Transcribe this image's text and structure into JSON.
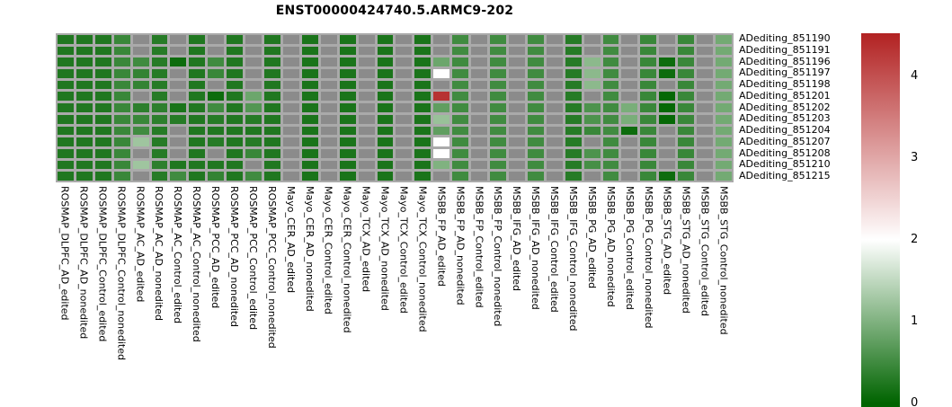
{
  "title": "ENST00000424740.5.ARMC9-202",
  "chart_data": {
    "type": "heatmap",
    "title": "ENST00000424740.5.ARMC9-202",
    "legend_position": "right",
    "rows": [
      "ADediting_851190",
      "ADediting_851191",
      "ADediting_851196",
      "ADediting_851197",
      "ADediting_851198",
      "ADediting_851201",
      "ADediting_851202",
      "ADediting_851203",
      "ADediting_851204",
      "ADediting_851207",
      "ADediting_851208",
      "ADediting_851210",
      "ADediting_851215"
    ],
    "columns": [
      "ROSMAP_DLPFC_AD_edited",
      "ROSMAP_DLPFC_AD_nonedited",
      "ROSMAP_DLPFC_Control_edited",
      "ROSMAP_DLPFC_Control_nonedited",
      "ROSMAP_AC_AD_edited",
      "ROSMAP_AC_AD_nonedited",
      "ROSMAP_AC_Control_edited",
      "ROSMAP_AC_Control_nonedited",
      "ROSMAP_PCC_AD_edited",
      "ROSMAP_PCC_AD_nonedited",
      "ROSMAP_PCC_Control_edited",
      "ROSMAP_PCC_Control_nonedited",
      "Mayo_CER_AD_edited",
      "Mayo_CER_AD_nonedited",
      "Mayo_CER_Control_edited",
      "Mayo_CER_Control_nonedited",
      "Mayo_TCX_AD_edited",
      "Mayo_TCX_AD_nonedited",
      "Mayo_TCX_Control_edited",
      "Mayo_TCX_Control_nonedited",
      "MSBB_FP_AD_edited",
      "MSBB_FP_AD_nonedited",
      "MSBB_FP_Control_edited",
      "MSBB_FP_Control_nonedited",
      "MSBB_IFG_AD_edited",
      "MSBB_IFG_AD_nonedited",
      "MSBB_IFG_Control_edited",
      "MSBB_IFG_Control_nonedited",
      "MSBB_PG_AD_edited",
      "MSBB_PG_AD_nonedited",
      "MSBB_PG_Control_edited",
      "MSBB_PG_Control_nonedited",
      "MSBB_STG_AD_edited",
      "MSBB_STG_AD_nonedited",
      "MSBB_STG_Control_edited",
      "MSBB_STG_Control_nonedited"
    ],
    "values": [
      [
        0.25,
        0.25,
        0.25,
        0.45,
        null,
        0.3,
        null,
        0.25,
        null,
        0.25,
        null,
        0.25,
        null,
        0.2,
        null,
        0.2,
        null,
        0.2,
        null,
        0.2,
        null,
        0.5,
        null,
        0.5,
        null,
        0.5,
        null,
        0.3,
        null,
        0.5,
        null,
        0.45,
        null,
        0.45,
        null,
        0.9
      ],
      [
        0.25,
        0.25,
        0.25,
        0.45,
        null,
        0.3,
        null,
        0.25,
        null,
        0.25,
        null,
        0.25,
        null,
        0.2,
        null,
        0.2,
        null,
        0.2,
        null,
        0.2,
        null,
        0.5,
        null,
        0.5,
        null,
        0.5,
        null,
        0.3,
        null,
        0.5,
        null,
        0.45,
        null,
        0.45,
        null,
        0.9
      ],
      [
        0.25,
        0.25,
        0.25,
        0.45,
        0.5,
        0.3,
        0.1,
        0.25,
        0.5,
        0.25,
        null,
        0.25,
        null,
        0.2,
        null,
        0.2,
        null,
        0.2,
        null,
        0.2,
        0.85,
        0.5,
        null,
        0.5,
        null,
        0.5,
        null,
        0.3,
        1.1,
        0.5,
        null,
        0.45,
        0.1,
        0.45,
        null,
        0.9
      ],
      [
        0.25,
        0.25,
        0.25,
        0.45,
        0.4,
        0.3,
        null,
        0.25,
        0.45,
        0.25,
        null,
        0.25,
        null,
        0.2,
        null,
        0.2,
        null,
        0.2,
        null,
        0.2,
        2.0,
        0.5,
        null,
        0.5,
        null,
        0.5,
        null,
        0.3,
        1.1,
        0.5,
        null,
        0.45,
        0.1,
        0.45,
        null,
        0.9
      ],
      [
        0.25,
        0.25,
        0.25,
        0.45,
        0.4,
        0.3,
        null,
        0.25,
        null,
        0.25,
        null,
        0.25,
        null,
        0.2,
        null,
        0.2,
        null,
        0.2,
        null,
        0.2,
        null,
        0.5,
        null,
        0.5,
        null,
        0.5,
        null,
        0.3,
        1.1,
        0.5,
        null,
        0.45,
        null,
        0.45,
        null,
        0.9
      ],
      [
        0.25,
        0.25,
        0.25,
        0.45,
        null,
        0.3,
        null,
        0.25,
        0.1,
        0.25,
        0.85,
        0.25,
        null,
        0.2,
        null,
        0.2,
        null,
        0.2,
        null,
        0.2,
        4.35,
        0.5,
        null,
        0.5,
        null,
        0.5,
        null,
        0.3,
        null,
        0.5,
        null,
        0.45,
        0.05,
        0.45,
        null,
        0.9
      ],
      [
        0.25,
        0.25,
        0.25,
        0.45,
        0.35,
        0.35,
        0.2,
        0.25,
        0.5,
        0.25,
        0.65,
        0.25,
        null,
        0.2,
        null,
        0.2,
        null,
        0.2,
        null,
        0.2,
        0.75,
        0.5,
        null,
        0.5,
        null,
        0.5,
        null,
        0.3,
        0.6,
        0.5,
        0.95,
        0.45,
        0.05,
        0.45,
        null,
        0.9
      ],
      [
        0.25,
        0.25,
        0.25,
        0.45,
        0.45,
        0.35,
        0.3,
        0.25,
        0.3,
        0.25,
        0.3,
        0.25,
        null,
        0.2,
        null,
        0.2,
        null,
        0.2,
        null,
        0.2,
        1.2,
        0.5,
        null,
        0.5,
        null,
        0.5,
        null,
        0.3,
        0.6,
        0.5,
        0.95,
        0.45,
        0.05,
        0.45,
        null,
        0.9
      ],
      [
        0.25,
        0.25,
        0.25,
        0.45,
        0.5,
        0.3,
        null,
        0.25,
        0.25,
        0.25,
        0.25,
        0.25,
        null,
        0.2,
        null,
        0.2,
        null,
        0.2,
        null,
        0.2,
        0.75,
        0.5,
        null,
        0.5,
        null,
        0.5,
        null,
        0.3,
        0.45,
        0.5,
        0.1,
        0.45,
        null,
        0.45,
        null,
        0.9
      ],
      [
        0.25,
        0.25,
        0.25,
        0.45,
        1.25,
        0.3,
        null,
        0.25,
        0.3,
        0.25,
        0.3,
        0.25,
        null,
        0.2,
        null,
        0.2,
        null,
        0.2,
        null,
        0.2,
        2.0,
        0.5,
        null,
        0.5,
        null,
        0.5,
        null,
        0.3,
        null,
        0.5,
        null,
        0.45,
        null,
        0.45,
        null,
        0.9
      ],
      [
        0.25,
        0.25,
        0.25,
        0.45,
        null,
        0.3,
        null,
        0.25,
        null,
        0.25,
        0.45,
        0.25,
        null,
        0.2,
        null,
        0.2,
        null,
        0.2,
        null,
        0.2,
        2.0,
        0.5,
        null,
        0.5,
        null,
        0.5,
        null,
        0.3,
        0.6,
        0.5,
        null,
        0.45,
        null,
        0.45,
        null,
        0.9
      ],
      [
        0.25,
        0.25,
        0.25,
        0.45,
        1.25,
        0.35,
        0.25,
        0.25,
        0.25,
        0.25,
        null,
        0.25,
        null,
        0.2,
        null,
        0.2,
        null,
        0.2,
        null,
        0.2,
        1.0,
        0.5,
        null,
        0.5,
        null,
        0.5,
        null,
        0.3,
        0.55,
        0.5,
        null,
        0.45,
        null,
        0.45,
        null,
        0.9
      ],
      [
        0.25,
        0.25,
        0.25,
        0.45,
        null,
        0.3,
        0.5,
        0.25,
        0.4,
        0.25,
        0.5,
        0.25,
        null,
        0.2,
        null,
        0.2,
        null,
        0.2,
        null,
        0.2,
        null,
        0.5,
        null,
        0.5,
        null,
        0.5,
        null,
        0.3,
        null,
        0.5,
        null,
        0.45,
        0.1,
        0.45,
        null,
        0.9
      ]
    ],
    "colorbar": {
      "ticks": [
        "4",
        "3",
        "2",
        "1",
        "0"
      ],
      "tick_values": [
        4,
        3,
        2,
        1,
        0
      ],
      "domain_min": 0,
      "domain_mid_white": 2,
      "domain_max": 4.53,
      "low_color": "#006400",
      "mid_color": "#ffffff",
      "high_color": "#b22222",
      "na_color": "#8b8b8b",
      "grid_color": "#aaaaaa"
    }
  }
}
